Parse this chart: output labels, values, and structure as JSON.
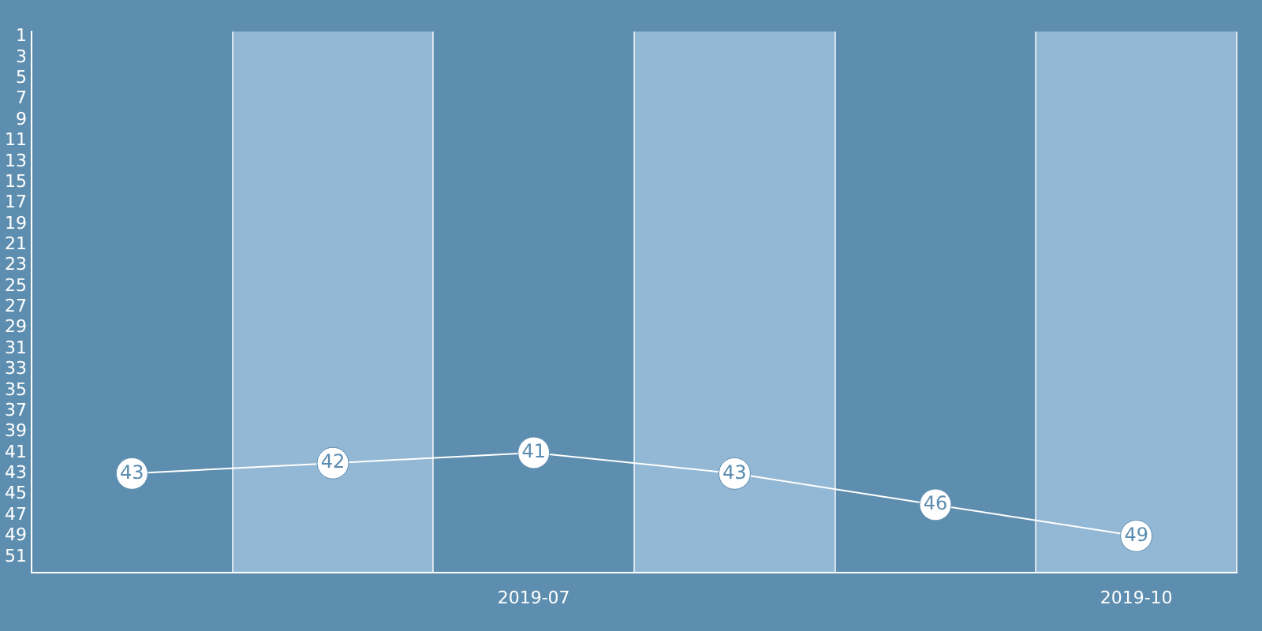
{
  "chart_data": {
    "type": "line",
    "categories": [
      null,
      null,
      "2019-07",
      null,
      null,
      "2019-10"
    ],
    "series": [
      {
        "color": "#ffffff",
        "values": [
          43,
          42,
          41,
          43,
          46,
          49
        ]
      }
    ],
    "ylim": [
      52.5,
      0.5
    ],
    "yticks": [
      1,
      3,
      5,
      7,
      9,
      11,
      13,
      15,
      17,
      19,
      21,
      23,
      25,
      27,
      29,
      31,
      33,
      35,
      37,
      39,
      41,
      43,
      45,
      47,
      49,
      51
    ],
    "grid": "x",
    "legend": false,
    "marker": "circle",
    "line_style": "solid",
    "data_labels": true
  }
}
